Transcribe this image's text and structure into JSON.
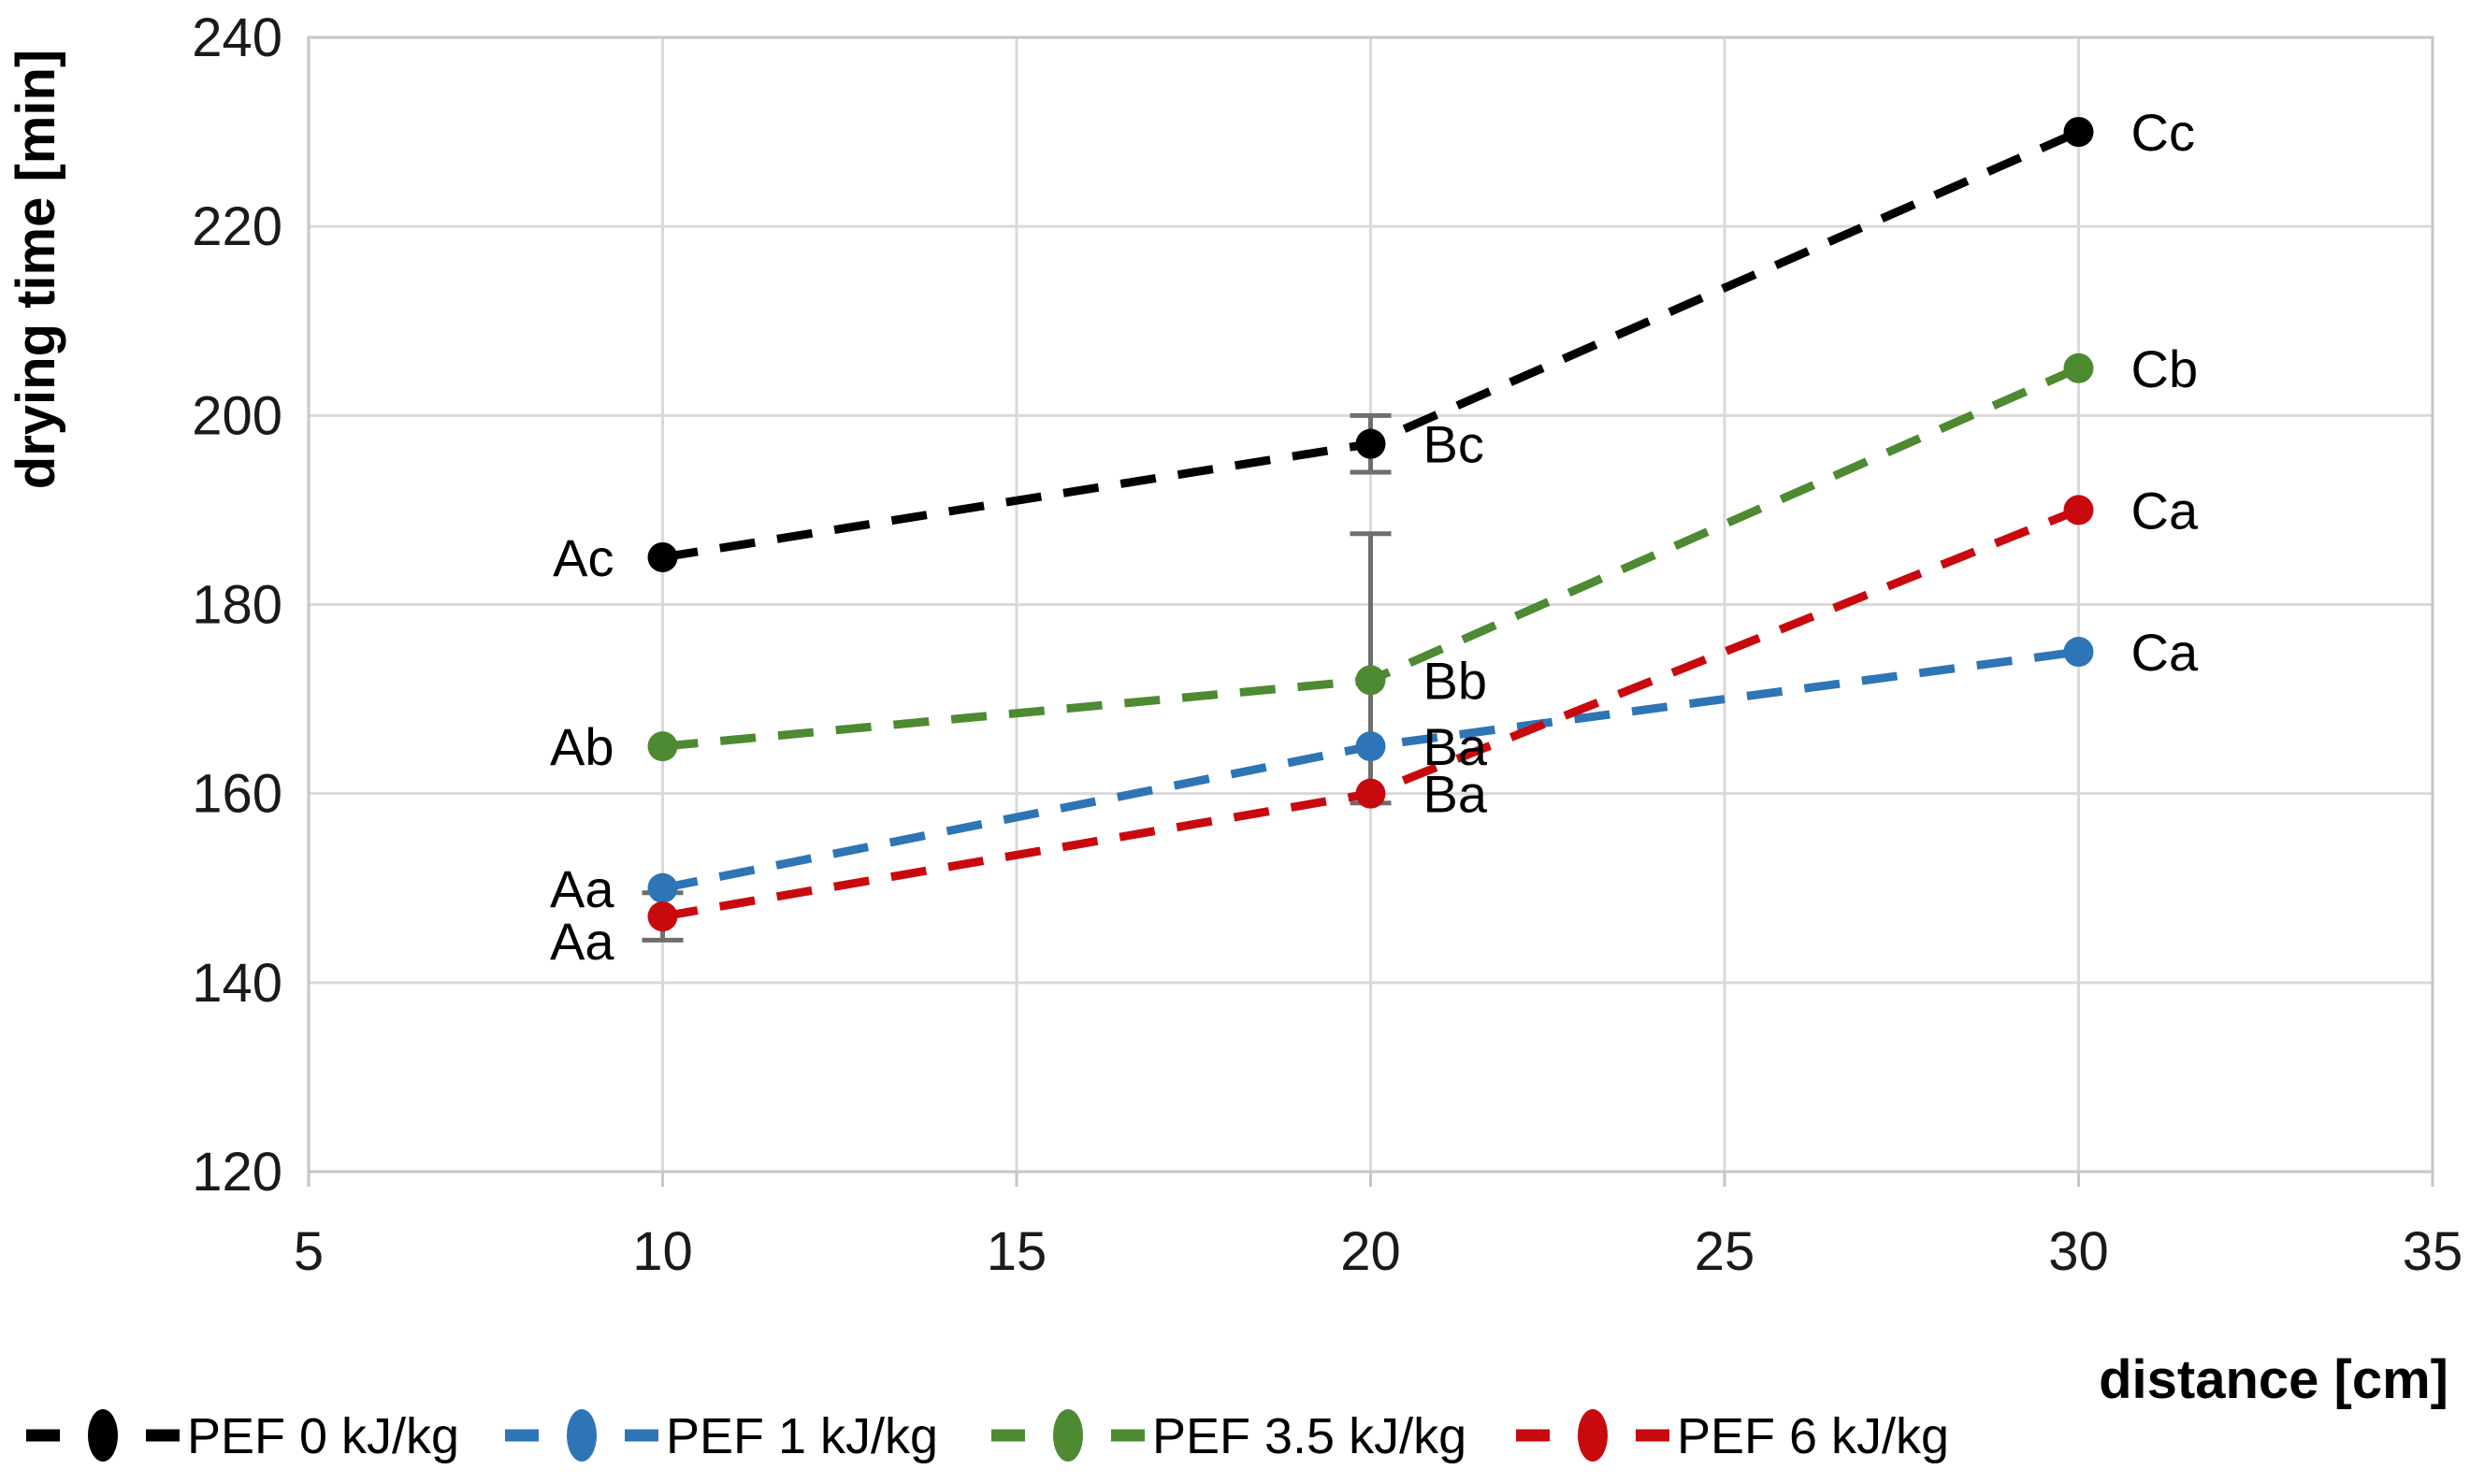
{
  "chart_data": {
    "type": "line",
    "title": "",
    "xlabel": "distance [cm]",
    "ylabel": "drying time [min]",
    "xlim": [
      5,
      35
    ],
    "ylim": [
      120,
      240
    ],
    "xticks": [
      5,
      10,
      15,
      20,
      25,
      30,
      35
    ],
    "yticks": [
      120,
      140,
      160,
      180,
      200,
      220,
      240
    ],
    "grid": true,
    "line_style": "dashed",
    "marker": "circle",
    "x": [
      10,
      20,
      30
    ],
    "series": [
      {
        "name": "PEF 0 kJ/kg",
        "color": "#000000",
        "values": [
          185,
          197,
          230
        ],
        "point_labels": [
          {
            "text": "Ac",
            "side": "left",
            "dy": 0
          },
          {
            "text": "Bc",
            "side": "right",
            "dy": 0
          },
          {
            "text": "Cc",
            "side": "right",
            "dy": 0
          }
        ],
        "error_bars": [
          null,
          {
            "plus": 3,
            "minus": 3
          },
          null
        ]
      },
      {
        "name": "PEF 1 kJ/kg",
        "color": "#2E75B6",
        "values": [
          150,
          165,
          175
        ],
        "point_labels": [
          {
            "text": "Aa",
            "side": "left",
            "dy": 0
          },
          {
            "text": "Ba",
            "side": "right",
            "dy": 0
          },
          {
            "text": "Ca",
            "side": "right",
            "dy": 0
          }
        ],
        "error_bars": [
          null,
          null,
          null
        ]
      },
      {
        "name": "PEF 3.5 kJ/kg",
        "color": "#4D8A31",
        "values": [
          165,
          172,
          205
        ],
        "point_labels": [
          {
            "text": "Ab",
            "side": "left",
            "dy": 0
          },
          {
            "text": "Bb",
            "side": "right",
            "dy": 0
          },
          {
            "text": "Cb",
            "side": "right",
            "dy": 0
          }
        ],
        "error_bars": [
          null,
          {
            "plus": 15.5,
            "minus": 13
          },
          null
        ]
      },
      {
        "name": "PEF 6 kJ/kg",
        "color": "#C80A0F",
        "values": [
          147,
          160,
          190
        ],
        "point_labels": [
          {
            "text": "Aa",
            "side": "left",
            "dy": 26
          },
          {
            "text": "Ba",
            "side": "right",
            "dy": 0
          },
          {
            "text": "Ca",
            "side": "right",
            "dy": 0
          }
        ],
        "error_bars": [
          {
            "plus": 2.5,
            "minus": 2.5
          },
          null,
          null
        ]
      }
    ],
    "legend": {
      "position": "bottom-left",
      "item_x": [
        28,
        540,
        1060,
        1621
      ],
      "center_y": 1535
    },
    "colors": {
      "grid": "#D9D9D9",
      "border": "#C6C6C6",
      "error_bar": "#6E6E6E",
      "tick_text": "#1A1A1A"
    }
  }
}
